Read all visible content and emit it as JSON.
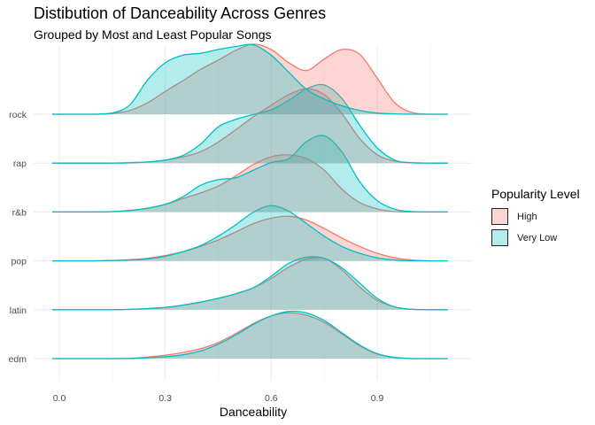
{
  "chart_data": {
    "type": "ridgeline",
    "title": "Distibution of Danceability Across Genres",
    "subtitle": "Grouped by Most and Least Popular Songs",
    "xlabel": "Danceability",
    "ylabel": "",
    "xlim": [
      -0.03,
      1.12
    ],
    "x_ticks": [
      "0.0",
      "0.3",
      "0.6",
      "0.9"
    ],
    "x_tick_values": [
      0.0,
      0.3,
      0.6,
      0.9
    ],
    "categories": [
      "rock",
      "rap",
      "r&b",
      "pop",
      "latin",
      "edm"
    ],
    "grid": true,
    "legend": {
      "title": "Popularity Level",
      "position": "right",
      "entries": [
        {
          "name": "High",
          "line_color": "#F8766D",
          "fill_color": "#F8766D"
        },
        {
          "name": "Very Low",
          "line_color": "#00BFC4",
          "fill_color": "#00BFC4"
        }
      ]
    },
    "x": [
      -0.02,
      0.0,
      0.05,
      0.1,
      0.15,
      0.2,
      0.25,
      0.3,
      0.35,
      0.4,
      0.45,
      0.5,
      0.55,
      0.6,
      0.65,
      0.7,
      0.75,
      0.8,
      0.85,
      0.9,
      0.95,
      1.0,
      1.05,
      1.1
    ],
    "series": [
      {
        "category": "rock",
        "name": "High",
        "values": [
          0,
          0,
          0,
          0,
          0.02,
          0.1,
          0.3,
          0.6,
          0.88,
          1.18,
          1.42,
          1.68,
          1.84,
          1.7,
          1.35,
          1.15,
          1.45,
          1.7,
          1.58,
          0.95,
          0.3,
          0.04,
          0,
          0
        ]
      },
      {
        "category": "rock",
        "name": "Very Low",
        "values": [
          0,
          0,
          0,
          0,
          0.03,
          0.25,
          0.9,
          1.35,
          1.55,
          1.6,
          1.7,
          1.78,
          1.82,
          1.55,
          1.1,
          0.65,
          0.4,
          0.22,
          0.1,
          0.03,
          0.01,
          0,
          0,
          0
        ]
      },
      {
        "category": "rap",
        "name": "High",
        "values": [
          0,
          0,
          0,
          0,
          0,
          0.01,
          0.03,
          0.08,
          0.16,
          0.3,
          0.55,
          0.88,
          1.22,
          1.52,
          1.8,
          1.95,
          1.8,
          1.3,
          0.65,
          0.22,
          0.05,
          0.01,
          0,
          0
        ]
      },
      {
        "category": "rap",
        "name": "Very Low",
        "values": [
          0,
          0,
          0,
          0,
          0,
          0.01,
          0.03,
          0.08,
          0.2,
          0.5,
          0.95,
          1.15,
          1.28,
          1.4,
          1.65,
          1.95,
          2.05,
          1.7,
          1.0,
          0.4,
          0.08,
          0.01,
          0,
          0
        ]
      },
      {
        "category": "r&b",
        "name": "High",
        "values": [
          0,
          0,
          0,
          0,
          0.01,
          0.04,
          0.1,
          0.2,
          0.35,
          0.5,
          0.68,
          0.95,
          1.25,
          1.45,
          1.5,
          1.4,
          1.1,
          0.6,
          0.25,
          0.08,
          0.01,
          0,
          0,
          0
        ]
      },
      {
        "category": "r&b",
        "name": "Very Low",
        "values": [
          0,
          0,
          0,
          0,
          0.01,
          0.04,
          0.1,
          0.2,
          0.4,
          0.7,
          0.85,
          0.9,
          1.1,
          1.3,
          1.4,
          1.85,
          2.0,
          1.58,
          0.8,
          0.3,
          0.07,
          0.01,
          0,
          0
        ]
      },
      {
        "category": "pop",
        "name": "High",
        "values": [
          0,
          0,
          0,
          0,
          0.01,
          0.03,
          0.07,
          0.14,
          0.24,
          0.38,
          0.55,
          0.76,
          0.98,
          1.12,
          1.17,
          1.07,
          0.85,
          0.6,
          0.38,
          0.2,
          0.08,
          0.02,
          0,
          0
        ]
      },
      {
        "category": "pop",
        "name": "Very Low",
        "values": [
          0,
          0,
          0,
          0,
          0.01,
          0.02,
          0.05,
          0.12,
          0.24,
          0.4,
          0.65,
          0.95,
          1.28,
          1.45,
          1.3,
          0.98,
          0.65,
          0.38,
          0.2,
          0.08,
          0.02,
          0,
          0,
          0
        ]
      },
      {
        "category": "latin",
        "name": "High",
        "values": [
          0,
          0,
          0,
          0,
          0,
          0.01,
          0.03,
          0.06,
          0.12,
          0.2,
          0.3,
          0.42,
          0.58,
          0.82,
          1.12,
          1.33,
          1.35,
          1.05,
          0.6,
          0.25,
          0.07,
          0.01,
          0,
          0
        ]
      },
      {
        "category": "latin",
        "name": "Very Low",
        "values": [
          0,
          0,
          0,
          0,
          0,
          0.01,
          0.03,
          0.06,
          0.12,
          0.2,
          0.3,
          0.42,
          0.58,
          0.88,
          1.22,
          1.38,
          1.35,
          1.1,
          0.7,
          0.3,
          0.07,
          0.01,
          0,
          0
        ]
      },
      {
        "category": "edm",
        "name": "High",
        "values": [
          0,
          0,
          0,
          0,
          0,
          0.01,
          0.04,
          0.09,
          0.16,
          0.26,
          0.42,
          0.66,
          0.92,
          1.12,
          1.2,
          1.14,
          0.95,
          0.65,
          0.34,
          0.12,
          0.03,
          0,
          0,
          0
        ]
      },
      {
        "category": "edm",
        "name": "Very Low",
        "values": [
          0,
          0,
          0,
          0,
          0,
          0,
          0.02,
          0.05,
          0.1,
          0.2,
          0.38,
          0.62,
          0.9,
          1.12,
          1.24,
          1.2,
          1.0,
          0.68,
          0.36,
          0.13,
          0.03,
          0,
          0,
          0
        ]
      }
    ]
  }
}
